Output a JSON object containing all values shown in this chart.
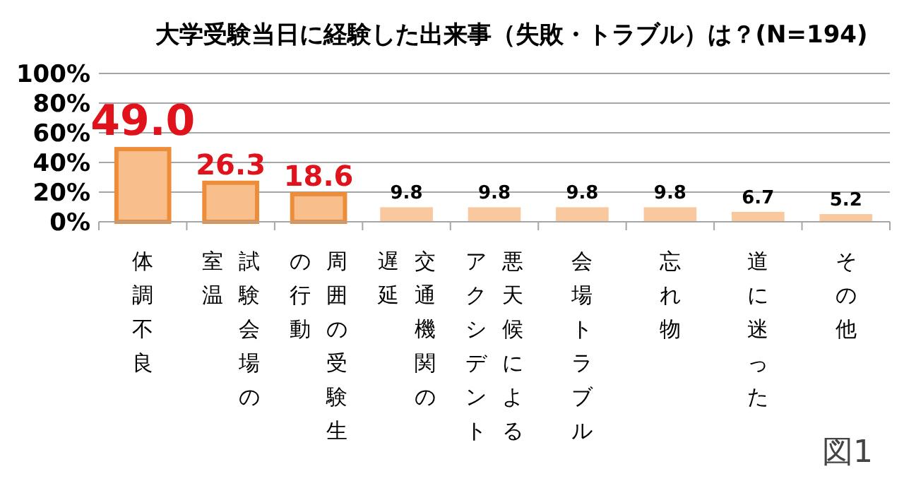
{
  "chart_data": {
    "type": "bar",
    "title": "大学受験当日に経験した出来事（失敗・トラブル）は？(N=194)",
    "categories": [
      "体調不良",
      "試験会場の室温",
      "周囲の受験生の行動",
      "交通機関の遅延",
      "悪天候によるアクシデント",
      "会場トラブル",
      "忘れ物",
      "道に迷った",
      "その他"
    ],
    "values": [
      49.0,
      26.3,
      18.6,
      9.8,
      9.8,
      9.8,
      9.8,
      6.7,
      5.2
    ],
    "colors": [
      "#f8bf8c",
      "#f8bf8c",
      "#f8bf8c",
      "#fac89e",
      "#fac89e",
      "#fac89e",
      "#fac89e",
      "#fac89e",
      "#fac89e"
    ],
    "value_labels": [
      "49.0",
      "26.3",
      "18.6",
      "9.8",
      "9.8",
      "9.8",
      "9.8",
      "6.7",
      "5.2"
    ],
    "ylim": [
      0,
      100
    ],
    "yticks": [
      {
        "value": 0,
        "label": "0%"
      },
      {
        "value": 20,
        "label": "20%"
      },
      {
        "value": 40,
        "label": "40%"
      },
      {
        "value": 60,
        "label": "60%"
      },
      {
        "value": 80,
        "label": "80%"
      },
      {
        "value": 100,
        "label": "100%"
      }
    ],
    "grid": "y",
    "annotations": [
      "図1"
    ]
  }
}
